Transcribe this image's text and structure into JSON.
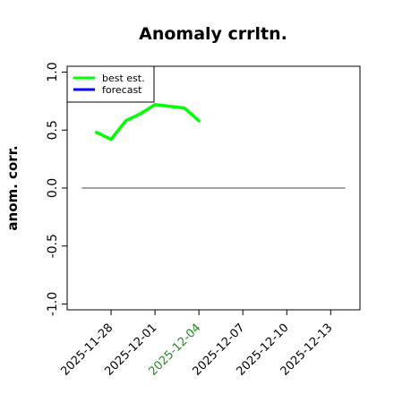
{
  "chart_data": {
    "type": "line",
    "title": "Anomaly crrltn.",
    "xlabel": "",
    "ylabel": "anom. corr.",
    "xlim": [
      "2025-11-25",
      "2025-12-15"
    ],
    "ylim": [
      -1.05,
      1.05
    ],
    "y_ticks": [
      "-1.0",
      "-0.5",
      "0.0",
      "0.5",
      "1.0"
    ],
    "x_ticks": [
      "2025-11-28",
      "2025-12-01",
      "2025-12-04",
      "2025-12-07",
      "2025-12-10",
      "2025-12-13"
    ],
    "highlighted_x_tick": "2025-12-04",
    "highlight_color": "#228B22",
    "reference_line_y": 0.0,
    "grid": false,
    "legend_position": "top-left",
    "series": [
      {
        "name": "best est.",
        "color": "#00ff00",
        "x": [
          "2025-11-27",
          "2025-11-28",
          "2025-11-29",
          "2025-11-30",
          "2025-12-01",
          "2025-12-03",
          "2025-12-04"
        ],
        "y": [
          0.48,
          0.42,
          0.58,
          0.64,
          0.72,
          0.69,
          0.58
        ]
      },
      {
        "name": "forecast",
        "color": "#0000ff",
        "x": [],
        "y": []
      }
    ]
  }
}
